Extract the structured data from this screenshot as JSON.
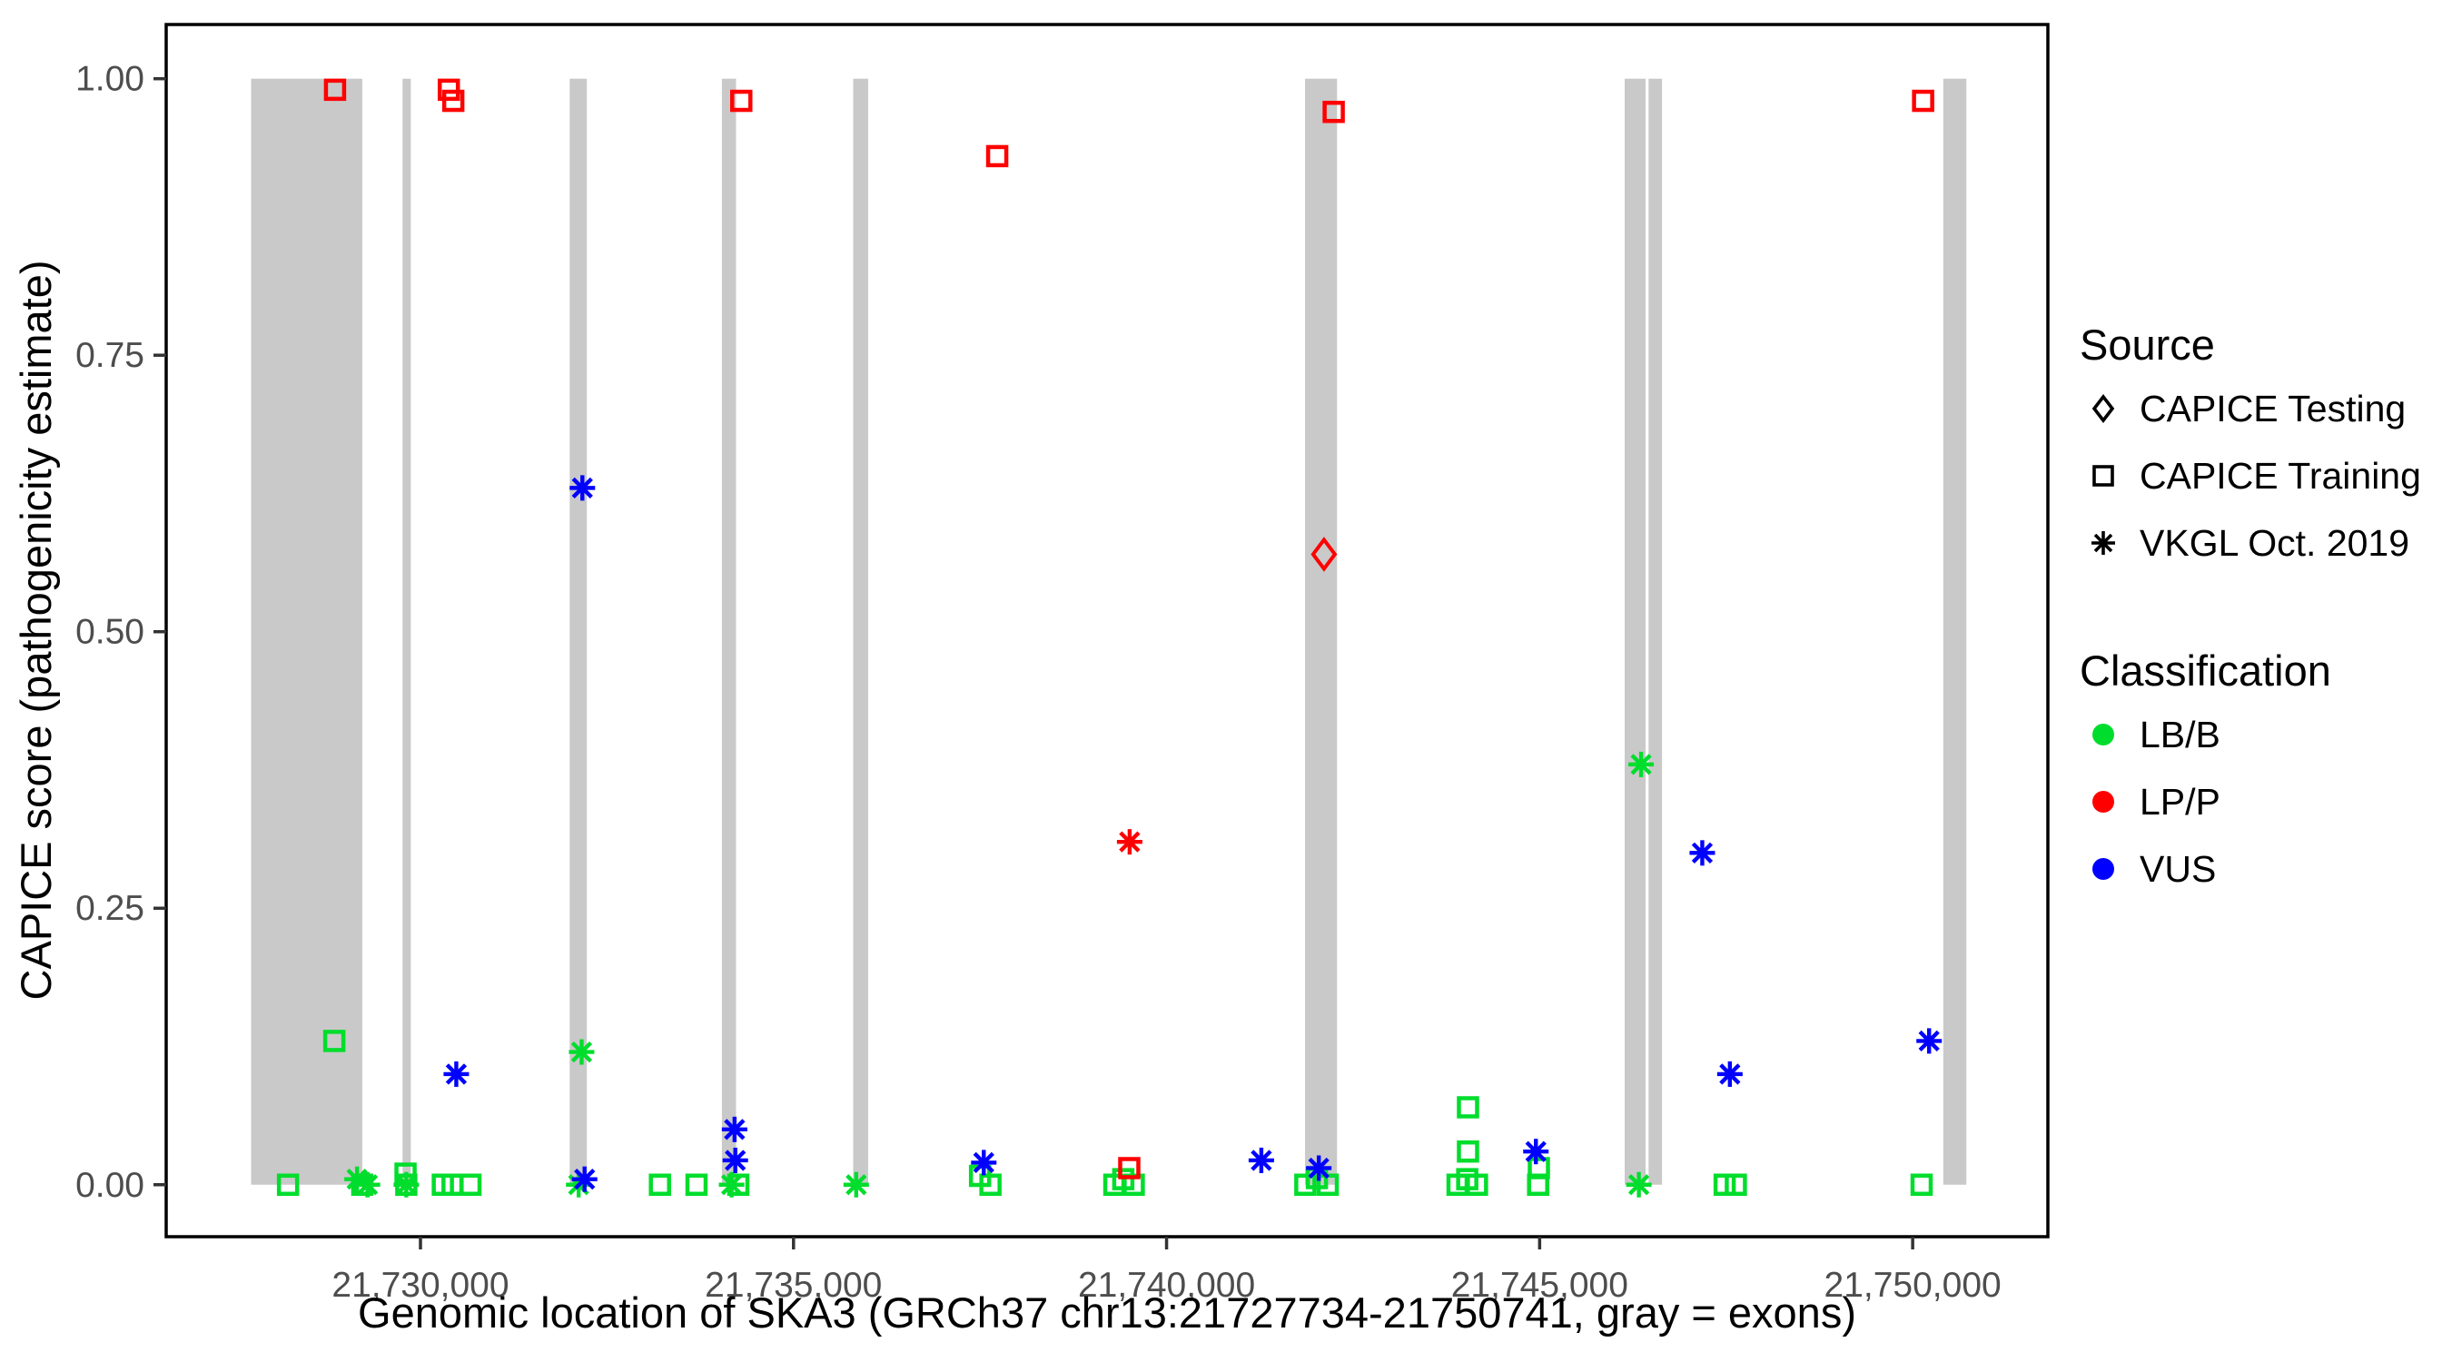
{
  "colors": {
    "LB/B": "#00DD2C",
    "LP/P": "#FF0000",
    "VUS": "#0000FF",
    "exon_gray": "#C9C9C9",
    "tick_label": "#4D4D4D",
    "axis_black": "#000000"
  },
  "legend": {
    "source": {
      "title": "Source",
      "items": [
        {
          "label": "CAPICE Testing",
          "marker": "diamond"
        },
        {
          "label": "CAPICE Training",
          "marker": "square"
        },
        {
          "label": "VKGL Oct. 2019",
          "marker": "asterisk"
        }
      ]
    },
    "classification": {
      "title": "Classification",
      "items": [
        {
          "label": "LB/B",
          "color": "#00DD2C"
        },
        {
          "label": "LP/P",
          "color": "#FF0000"
        },
        {
          "label": "VUS",
          "color": "#0000FF"
        }
      ]
    }
  },
  "chart_data": {
    "type": "scatter",
    "title": "",
    "xlabel": "Genomic location of SKA3 (GRCh37 chr13:21727734-21750741, gray = exons)",
    "ylabel": "CAPICE score (pathogenicity estimate)",
    "x_domain": [
      21726592,
      21751812
    ],
    "y_domain": [
      -0.047,
      1.049
    ],
    "grid": false,
    "legend_position": "right",
    "x_ticks": [
      {
        "value": 21730000,
        "label": "21,730,000"
      },
      {
        "value": 21735000,
        "label": "21,735,000"
      },
      {
        "value": 21740000,
        "label": "21,740,000"
      },
      {
        "value": 21745000,
        "label": "21,745,000"
      },
      {
        "value": 21750000,
        "label": "21,750,000"
      }
    ],
    "y_ticks": [
      {
        "value": 0.0,
        "label": "0.00"
      },
      {
        "value": 0.25,
        "label": "0.25"
      },
      {
        "value": 0.5,
        "label": "0.50"
      },
      {
        "value": 0.75,
        "label": "0.75"
      },
      {
        "value": 1.0,
        "label": "1.00"
      }
    ],
    "exons": [
      [
        21727730,
        21729220
      ],
      [
        21729760,
        21729870
      ],
      [
        21732000,
        21732230
      ],
      [
        21734040,
        21734230
      ],
      [
        21735800,
        21736000
      ],
      [
        21741856,
        21742285
      ],
      [
        21746140,
        21746420
      ],
      [
        21746460,
        21746640
      ],
      [
        21750410,
        21750720
      ]
    ],
    "series": [
      {
        "name": "CAPICE Training",
        "marker": "square",
        "groups": {
          "LB/B": [
            [
              21728225,
              0.0
            ],
            [
              21728845,
              0.13
            ],
            [
              21729220,
              0.0
            ],
            [
              21729800,
              0.01
            ],
            [
              21729810,
              0.0
            ],
            [
              21730300,
              0.0
            ],
            [
              21730430,
              0.0
            ],
            [
              21730670,
              0.0
            ],
            [
              21733210,
              0.0
            ],
            [
              21733700,
              0.0
            ],
            [
              21734260,
              0.0
            ],
            [
              21737500,
              0.008
            ],
            [
              21737640,
              0.0
            ],
            [
              21739300,
              0.0
            ],
            [
              21739420,
              0.005
            ],
            [
              21739560,
              0.0
            ],
            [
              21741860,
              0.0
            ],
            [
              21742015,
              0.006
            ],
            [
              21742160,
              0.0
            ],
            [
              21743900,
              0.0
            ],
            [
              21744030,
              0.005
            ],
            [
              21744160,
              0.0
            ],
            [
              21744040,
              0.07
            ],
            [
              21744040,
              0.03
            ],
            [
              21744980,
              0.0
            ],
            [
              21744990,
              0.015
            ],
            [
              21747480,
              0.0
            ],
            [
              21747630,
              0.0
            ],
            [
              21750120,
              0.0
            ]
          ],
          "LP/P": [
            [
              21728855,
              0.99
            ],
            [
              21730380,
              0.99
            ],
            [
              21730440,
              0.98
            ],
            [
              21734300,
              0.98
            ],
            [
              21737730,
              0.93
            ],
            [
              21742240,
              0.97
            ],
            [
              21750140,
              0.98
            ],
            [
              21739500,
              0.015
            ]
          ]
        }
      },
      {
        "name": "VKGL Oct. 2019",
        "marker": "asterisk",
        "groups": {
          "LB/B": [
            [
              21729150,
              0.005
            ],
            [
              21729290,
              0.0
            ],
            [
              21729810,
              0.0
            ],
            [
              21732120,
              0.0
            ],
            [
              21732160,
              0.12
            ],
            [
              21734170,
              0.0
            ],
            [
              21735840,
              0.0
            ],
            [
              21746330,
              0.0
            ],
            [
              21746360,
              0.38
            ]
          ],
          "VUS": [
            [
              21730480,
              0.1
            ],
            [
              21732170,
              0.63
            ],
            [
              21732200,
              0.005
            ],
            [
              21734210,
              0.05
            ],
            [
              21734220,
              0.022
            ],
            [
              21737550,
              0.02
            ],
            [
              21741270,
              0.022
            ],
            [
              21742040,
              0.015
            ],
            [
              21744950,
              0.03
            ],
            [
              21747180,
              0.3
            ],
            [
              21747550,
              0.1
            ],
            [
              21750220,
              0.13
            ]
          ],
          "LP/P": [
            [
              21739505,
              0.31
            ]
          ]
        }
      },
      {
        "name": "CAPICE Testing",
        "marker": "diamond",
        "groups": {
          "LP/P": [
            [
              21742110,
              0.57
            ]
          ]
        }
      }
    ]
  }
}
